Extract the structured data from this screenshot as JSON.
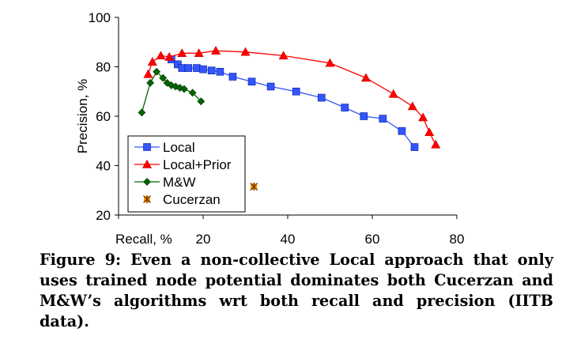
{
  "chart_data": {
    "type": "line",
    "title": "",
    "xlabel": "Recall, %",
    "ylabel": "Precision, %",
    "xlim": [
      0,
      80
    ],
    "ylim": [
      20,
      100
    ],
    "xticks": [
      20,
      40,
      60,
      80
    ],
    "yticks": [
      20,
      40,
      60,
      80,
      100
    ],
    "grid": false,
    "legend_position": "bottom-left",
    "series": [
      {
        "name": "Local",
        "color": "#3355ff",
        "marker": "square",
        "line": true,
        "points": [
          [
            12.5,
            83
          ],
          [
            14,
            81
          ],
          [
            15,
            79.5
          ],
          [
            16.5,
            79.5
          ],
          [
            18.5,
            79.5
          ],
          [
            20,
            79
          ],
          [
            22,
            78.5
          ],
          [
            24,
            78
          ],
          [
            27,
            76
          ],
          [
            31.5,
            74
          ],
          [
            36,
            72
          ],
          [
            42,
            70
          ],
          [
            48,
            67.5
          ],
          [
            53.5,
            63.5
          ],
          [
            58,
            60
          ],
          [
            62.5,
            59
          ],
          [
            67,
            54
          ],
          [
            70,
            47.5
          ]
        ]
      },
      {
        "name": "Local+Prior",
        "color": "#ff0000",
        "marker": "triangle",
        "line": true,
        "points": [
          [
            7,
            77
          ],
          [
            8,
            82
          ],
          [
            10,
            84.5
          ],
          [
            12,
            84
          ],
          [
            15,
            85.5
          ],
          [
            19,
            85.5
          ],
          [
            23,
            86.5
          ],
          [
            30,
            86
          ],
          [
            39,
            84.5
          ],
          [
            50,
            81.5
          ],
          [
            58.5,
            75.5
          ],
          [
            65,
            69
          ],
          [
            69.5,
            64
          ],
          [
            72,
            59.5
          ],
          [
            73.5,
            53.5
          ],
          [
            75,
            48.5
          ]
        ]
      },
      {
        "name": "M&W",
        "color": "#006600",
        "marker": "diamond",
        "line": true,
        "points": [
          [
            5.5,
            61.5
          ],
          [
            7.5,
            73.5
          ],
          [
            9,
            78
          ],
          [
            10.5,
            75.5
          ],
          [
            11.5,
            73.5
          ],
          [
            12.5,
            72.5
          ],
          [
            13.5,
            72
          ],
          [
            14.5,
            71.5
          ],
          [
            15.5,
            71
          ],
          [
            17.5,
            69.5
          ],
          [
            19.5,
            66
          ]
        ]
      },
      {
        "name": "Cucerzan",
        "color": "#ff9900",
        "marker": "star",
        "line": false,
        "points": [
          [
            32,
            31.5
          ]
        ]
      }
    ]
  },
  "caption": "Figure 9: Even a non-collective Local approach that only uses trained node potential dominates both Cucerzan and M&W’s algorithms wrt both recall and precision (IITB data)."
}
